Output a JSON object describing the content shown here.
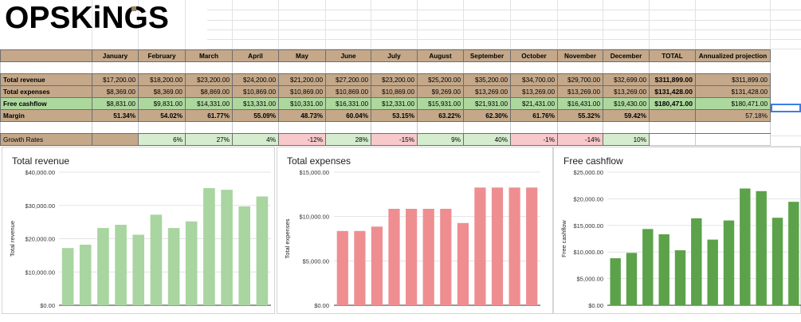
{
  "logo_text": "OPSKiNGS",
  "table": {
    "header": [
      "",
      "January",
      "February",
      "March",
      "April",
      "May",
      "June",
      "July",
      "August",
      "September",
      "October",
      "November",
      "December",
      "TOTAL",
      "Annualized projection"
    ],
    "rows": {
      "revenue": {
        "label": "Total revenue",
        "values": [
          "$17,200.00",
          "$18,200.00",
          "$23,200.00",
          "$24,200.00",
          "$21,200.00",
          "$27,200.00",
          "$23,200.00",
          "$25,200.00",
          "$35,200.00",
          "$34,700.00",
          "$29,700.00",
          "$32,699.00"
        ],
        "total": "$311,899.00",
        "projection": "$311,899.00"
      },
      "expenses": {
        "label": "Total expenses",
        "values": [
          "$8,369.00",
          "$8,369.00",
          "$8,869.00",
          "$10,869.00",
          "$10,869.00",
          "$10,869.00",
          "$10,869.00",
          "$9,269.00",
          "$13,269.00",
          "$13,269.00",
          "$13,269.00",
          "$13,269.00"
        ],
        "total": "$131,428.00",
        "projection": "$131,428.00"
      },
      "cashflow": {
        "label": "Free cashflow",
        "values": [
          "$8,831.00",
          "$9,831.00",
          "$14,331.00",
          "$13,331.00",
          "$10,331.00",
          "$16,331.00",
          "$12,331.00",
          "$15,931.00",
          "$21,931.00",
          "$21,431.00",
          "$16,431.00",
          "$19,430.00"
        ],
        "total": "$180,471.00",
        "projection": "$180,471.00"
      },
      "margin": {
        "label": "Margin",
        "values": [
          "51.34%",
          "54.02%",
          "61.77%",
          "55.09%",
          "48.73%",
          "60.04%",
          "53.15%",
          "63.22%",
          "62.30%",
          "61.76%",
          "55.32%",
          "59.42%"
        ],
        "total": "",
        "projection": "57.18%"
      },
      "growth": {
        "label": "Growth Rates",
        "values": [
          "",
          "6%",
          "27%",
          "4%",
          "-12%",
          "28%",
          "-15%",
          "9%",
          "40%",
          "-1%",
          "-14%",
          "10%"
        ]
      }
    }
  },
  "charts": [
    {
      "id": "revenue",
      "title": "Total revenue",
      "ylabel": "Total revenue",
      "color": "#a8d5a0",
      "ylim": [
        0,
        40000
      ],
      "ticks": [
        "$0.00",
        "$10,000.00",
        "$20,000.00",
        "$30,000.00",
        "$40,000.00"
      ],
      "values": [
        17200,
        18200,
        23200,
        24200,
        21200,
        27200,
        23200,
        25200,
        35200,
        34700,
        29700,
        32699
      ]
    },
    {
      "id": "expenses",
      "title": "Total expenses",
      "ylabel": "Total expenses",
      "color": "#ee8e91",
      "ylim": [
        0,
        15000
      ],
      "ticks": [
        "$0.00",
        "$5,000.00",
        "$10,000.00",
        "$15,000.00"
      ],
      "values": [
        8369,
        8369,
        8869,
        10869,
        10869,
        10869,
        10869,
        9269,
        13269,
        13269,
        13269,
        13269
      ]
    },
    {
      "id": "cashflow",
      "title": "Free cashflow",
      "ylabel": "Free cashflow",
      "color": "#5ba24a",
      "ylim": [
        0,
        25000
      ],
      "ticks": [
        "$0.00",
        "$5,000.00",
        "$10,000.00",
        "$15,000.00",
        "$20,000.00",
        "$25,000.00"
      ],
      "values": [
        8831,
        9831,
        14331,
        13331,
        10331,
        16331,
        12331,
        15931,
        21931,
        21431,
        16431,
        19430
      ]
    }
  ]
}
